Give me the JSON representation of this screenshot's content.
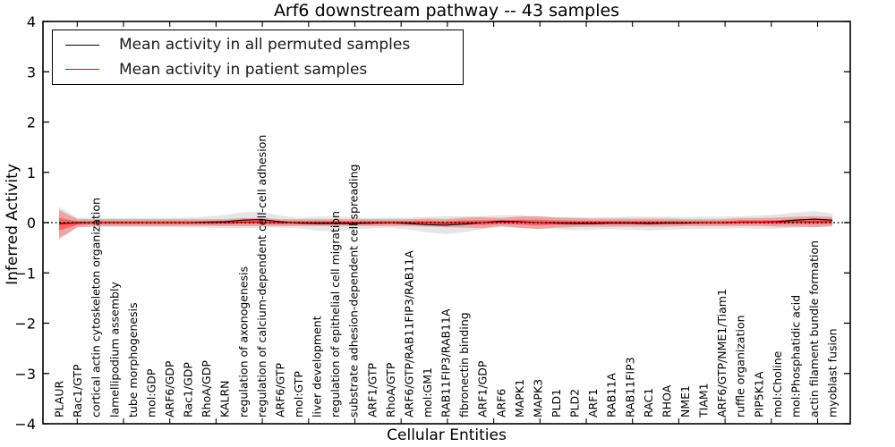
{
  "figure": {
    "title": "Arf6 downstream pathway -- 43 samples",
    "xlabel": "Cellular Entities",
    "ylabel": "Inferred Activity"
  },
  "legend": {
    "items": [
      {
        "label": "Mean activity in all permuted samples",
        "color": "#000000"
      },
      {
        "label": "Mean activity in patient samples",
        "color": "#ff0000"
      }
    ]
  },
  "chart_data": {
    "type": "line",
    "title": "Arf6 downstream pathway -- 43 samples",
    "xlabel": "Cellular Entities",
    "ylabel": "Inferred Activity",
    "ylim": [
      -4,
      4
    ],
    "ytick_labels": [
      "4",
      "3",
      "2",
      "1",
      "0",
      "−1",
      "−2",
      "−3",
      "−4"
    ],
    "ytick_values": [
      4,
      3,
      2,
      1,
      0,
      -1,
      -2,
      -3,
      -4
    ],
    "grid": false,
    "legend_position": "upper left",
    "zero_line": {
      "value": 0,
      "style": "dotted",
      "color": "#000000"
    },
    "categories": [
      "PLAUR",
      "Rac1/GTP",
      "cortical actin cytoskeleton organization",
      "lamellipodium assembly",
      "tube morphogenesis",
      "mol:GDP",
      "ARF6/GDP",
      "Rac1/GDP",
      "RhoA/GDP",
      "KALRN",
      "regulation of axonogenesis",
      "regulation of calcium-dependent cell-cell adhesion",
      "ARF6/GTP",
      "mol:GTP",
      "liver development",
      "regulation of epithelial cell migration",
      "substrate adhesion-dependent cell spreading",
      "ARF1/GTP",
      "RhoA/GTP",
      "ARF6/GTP/RAB11FIP3/RAB11A",
      "mol:GM1",
      "RAB11FIP3/RAB11A",
      "fibronectin binding",
      "ARF1/GDP",
      "ARF6",
      "MAPK1",
      "MAPK3",
      "PLD1",
      "PLD2",
      "ARF1",
      "RAB11A",
      "RAB11FIP3",
      "RAC1",
      "RHOA",
      "NME1",
      "TIAM1",
      "ARF6/GTP/NME1/Tiam1",
      "ruffle organization",
      "PIP5K1A",
      "mol:Choline",
      "mol:Phosphatidic acid",
      "actin filament bundle formation",
      "myoblast fusion"
    ],
    "series": [
      {
        "name": "Mean activity in all permuted samples",
        "color": "#000000",
        "band_color": "rgba(0,0,0,0.10)",
        "values": [
          -0.02,
          0.0,
          0.0,
          0.0,
          0.0,
          0.0,
          0.0,
          0.0,
          0.01,
          0.02,
          0.05,
          0.06,
          0.02,
          -0.01,
          -0.02,
          -0.02,
          -0.02,
          -0.01,
          0.0,
          -0.02,
          -0.04,
          -0.05,
          -0.03,
          0.0,
          0.03,
          0.02,
          0.0,
          -0.01,
          -0.02,
          -0.02,
          -0.01,
          -0.01,
          -0.02,
          -0.01,
          -0.01,
          0.0,
          0.0,
          0.01,
          0.01,
          0.02,
          0.05,
          0.07,
          0.05
        ],
        "std": [
          0.33,
          0.1,
          0.09,
          0.09,
          0.09,
          0.09,
          0.09,
          0.1,
          0.11,
          0.13,
          0.16,
          0.16,
          0.12,
          0.1,
          0.14,
          0.15,
          0.12,
          0.1,
          0.1,
          0.12,
          0.15,
          0.18,
          0.16,
          0.13,
          0.12,
          0.13,
          0.12,
          0.12,
          0.13,
          0.12,
          0.12,
          0.13,
          0.14,
          0.13,
          0.12,
          0.12,
          0.12,
          0.12,
          0.13,
          0.14,
          0.15,
          0.16,
          0.13
        ]
      },
      {
        "name": "Mean activity in patient samples",
        "color": "#ff0000",
        "band_color": "rgba(255,0,0,0.28)",
        "band_inner_color": "rgba(255,0,0,0.38)",
        "values": [
          -0.03,
          -0.01,
          0.0,
          0.0,
          0.0,
          0.0,
          0.0,
          0.0,
          0.0,
          0.0,
          0.01,
          0.01,
          0.0,
          0.0,
          0.0,
          0.0,
          0.0,
          0.0,
          0.0,
          0.0,
          0.0,
          -0.01,
          0.0,
          0.0,
          0.01,
          0.01,
          0.0,
          0.0,
          0.0,
          0.0,
          0.0,
          0.0,
          0.0,
          0.0,
          0.0,
          0.0,
          0.0,
          0.01,
          0.01,
          0.01,
          0.02,
          0.02,
          0.02
        ],
        "std": [
          0.28,
          0.08,
          0.07,
          0.07,
          0.07,
          0.07,
          0.07,
          0.07,
          0.07,
          0.07,
          0.08,
          0.08,
          0.07,
          0.07,
          0.07,
          0.07,
          0.07,
          0.07,
          0.07,
          0.07,
          0.08,
          0.08,
          0.1,
          0.11,
          0.08,
          0.11,
          0.13,
          0.1,
          0.09,
          0.08,
          0.08,
          0.08,
          0.08,
          0.08,
          0.07,
          0.07,
          0.07,
          0.08,
          0.08,
          0.09,
          0.1,
          0.11,
          0.09
        ]
      }
    ]
  }
}
